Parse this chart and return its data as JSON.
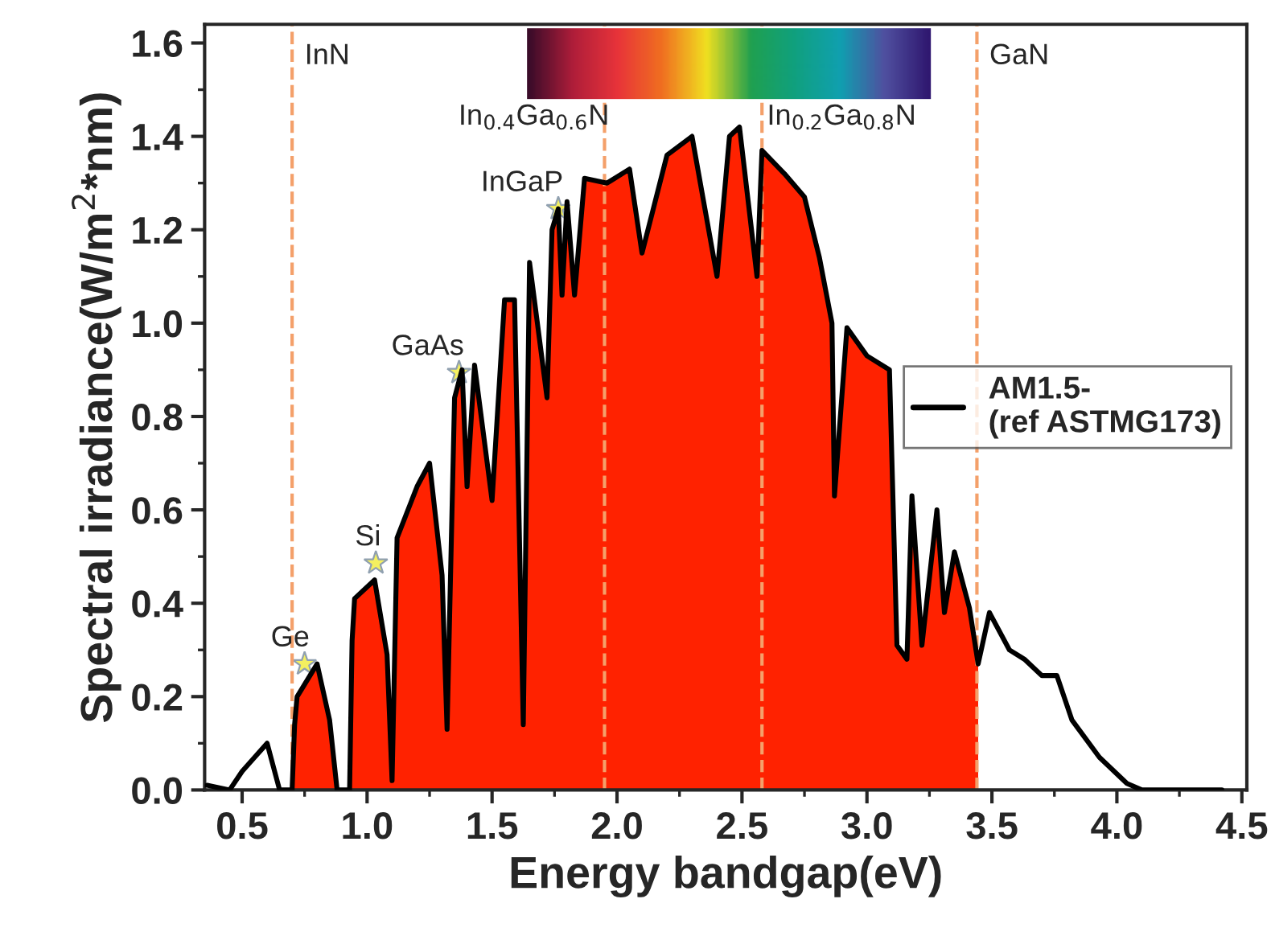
{
  "chart_data": {
    "type": "line",
    "xlabel": "Energy bandgap(eV)",
    "ylabel": "Spectral irradiance(W/m$^{2}$*nm)",
    "xlim": [
      0.35,
      4.52
    ],
    "ylim": [
      0,
      1.64
    ],
    "xticks": [
      {
        "value": 0.5,
        "label": "0.5"
      },
      {
        "value": 1.0,
        "label": "1.0"
      },
      {
        "value": 1.5,
        "label": "1.5"
      },
      {
        "value": 2.0,
        "label": "2.0"
      },
      {
        "value": 2.5,
        "label": "2.5"
      },
      {
        "value": 3.0,
        "label": "3.0"
      },
      {
        "value": 3.5,
        "label": "3.5"
      },
      {
        "value": 4.0,
        "label": "4.0"
      },
      {
        "value": 4.5,
        "label": "4.5"
      }
    ],
    "yticks": [
      {
        "value": 0,
        "label": "0.0"
      },
      {
        "value": 0.2,
        "label": "0.2"
      },
      {
        "value": 0.4,
        "label": "0.4"
      },
      {
        "value": 0.6,
        "label": "0.6"
      },
      {
        "value": 0.8,
        "label": "0.8"
      },
      {
        "value": 1.0,
        "label": "1.0"
      },
      {
        "value": 1.2,
        "label": "1.2"
      },
      {
        "value": 1.4,
        "label": "1.4"
      },
      {
        "value": 1.6,
        "label": "1.6"
      }
    ],
    "series": [
      {
        "name": "AM1.5-\n(ref ASTMG173)",
        "color": "#000000",
        "x": [
          0.36,
          0.45,
          0.5,
          0.55,
          0.6,
          0.65,
          0.7,
          0.71,
          0.72,
          0.8,
          0.85,
          0.88,
          0.93,
          0.94,
          0.95,
          1.03,
          1.08,
          1.1,
          1.12,
          1.2,
          1.25,
          1.3,
          1.32,
          1.35,
          1.38,
          1.4,
          1.43,
          1.5,
          1.55,
          1.59,
          1.625,
          1.65,
          1.72,
          1.74,
          1.765,
          1.78,
          1.8,
          1.83,
          1.87,
          1.96,
          2.05,
          2.1,
          2.2,
          2.3,
          2.4,
          2.45,
          2.49,
          2.56,
          2.58,
          2.67,
          2.75,
          2.81,
          2.86,
          2.87,
          2.92,
          3.0,
          3.09,
          3.12,
          3.16,
          3.18,
          3.22,
          3.28,
          3.31,
          3.35,
          3.41,
          3.445,
          3.49,
          3.57,
          3.63,
          3.7,
          3.76,
          3.82,
          3.93,
          4.04,
          4.1,
          4.42
        ],
        "values": [
          0.01,
          0.0,
          0.04,
          0.07,
          0.1,
          0.0,
          0.0,
          0.14,
          0.2,
          0.27,
          0.15,
          0.0,
          0.0,
          0.32,
          0.41,
          0.45,
          0.29,
          0.02,
          0.54,
          0.65,
          0.7,
          0.46,
          0.13,
          0.84,
          0.9,
          0.65,
          0.91,
          0.62,
          1.05,
          1.05,
          0.14,
          1.13,
          0.84,
          1.2,
          1.245,
          1.06,
          1.26,
          1.06,
          1.31,
          1.3,
          1.33,
          1.15,
          1.36,
          1.4,
          1.1,
          1.4,
          1.42,
          1.1,
          1.37,
          1.32,
          1.27,
          1.14,
          1.0,
          0.63,
          0.99,
          0.93,
          0.9,
          0.31,
          0.28,
          0.63,
          0.31,
          0.6,
          0.38,
          0.51,
          0.39,
          0.27,
          0.38,
          0.3,
          0.28,
          0.245,
          0.245,
          0.15,
          0.07,
          0.014,
          0.0,
          0.0
        ]
      },
      {
        "type": "area",
        "color": "#ff2200",
        "x": [
          0.7,
          0.71,
          0.72,
          0.8,
          0.85,
          0.88,
          0.93,
          0.94,
          0.95,
          1.03,
          1.08,
          1.1,
          1.12,
          1.2,
          1.25,
          1.3,
          1.32,
          1.35,
          1.38,
          1.4,
          1.43,
          1.5,
          1.55,
          1.59,
          1.625,
          1.65,
          1.72,
          1.74,
          1.765,
          1.78,
          1.8,
          1.83,
          1.87,
          1.96,
          2.05,
          2.1,
          2.2,
          2.3,
          2.4,
          2.45,
          2.49,
          2.56,
          2.58,
          2.67,
          2.75,
          2.81,
          2.86,
          2.87,
          2.92,
          3.0,
          3.09,
          3.12,
          3.16,
          3.18,
          3.22,
          3.28,
          3.31,
          3.35,
          3.41,
          3.445
        ],
        "values": [
          0.0,
          0.14,
          0.2,
          0.27,
          0.15,
          0.0,
          0.0,
          0.32,
          0.41,
          0.45,
          0.29,
          0.02,
          0.54,
          0.65,
          0.7,
          0.46,
          0.13,
          0.84,
          0.9,
          0.65,
          0.91,
          0.62,
          1.05,
          1.05,
          0.14,
          1.13,
          0.84,
          1.2,
          1.245,
          1.06,
          1.26,
          1.06,
          1.31,
          1.3,
          1.33,
          1.15,
          1.36,
          1.4,
          1.1,
          1.4,
          1.42,
          1.1,
          1.37,
          1.32,
          1.27,
          1.14,
          1.0,
          0.63,
          0.99,
          0.93,
          0.9,
          0.31,
          0.28,
          0.63,
          0.31,
          0.6,
          0.38,
          0.51,
          0.39,
          0.27
        ]
      }
    ],
    "ref_lines": [
      {
        "axis": "x",
        "value": 0.7,
        "label": "InN",
        "color": "#f4a06a",
        "line_style": "dashed"
      },
      {
        "axis": "x",
        "value": 1.95,
        "label": "In$_{0.4}$Ga$_{0.6}$N",
        "color": "#f4a06a",
        "line_style": "dashed"
      },
      {
        "axis": "x",
        "value": 2.58,
        "label": "In$_{0.2}$Ga$_{0.8}$N",
        "color": "#f4a06a",
        "line_style": "dashed"
      },
      {
        "axis": "x",
        "value": 3.44,
        "label": "GaN",
        "color": "#f4a06a",
        "line_style": "dashed"
      }
    ],
    "annotations": [
      {
        "text": "Ge",
        "x": 0.75,
        "y": 0.27
      },
      {
        "text": "Si",
        "x": 1.035,
        "y": 0.486
      },
      {
        "text": "GaAs",
        "x": 1.368,
        "y": 0.894
      },
      {
        "text": "InGaP",
        "x": 1.765,
        "y": 1.245
      }
    ],
    "legend": "right",
    "grid": false
  }
}
